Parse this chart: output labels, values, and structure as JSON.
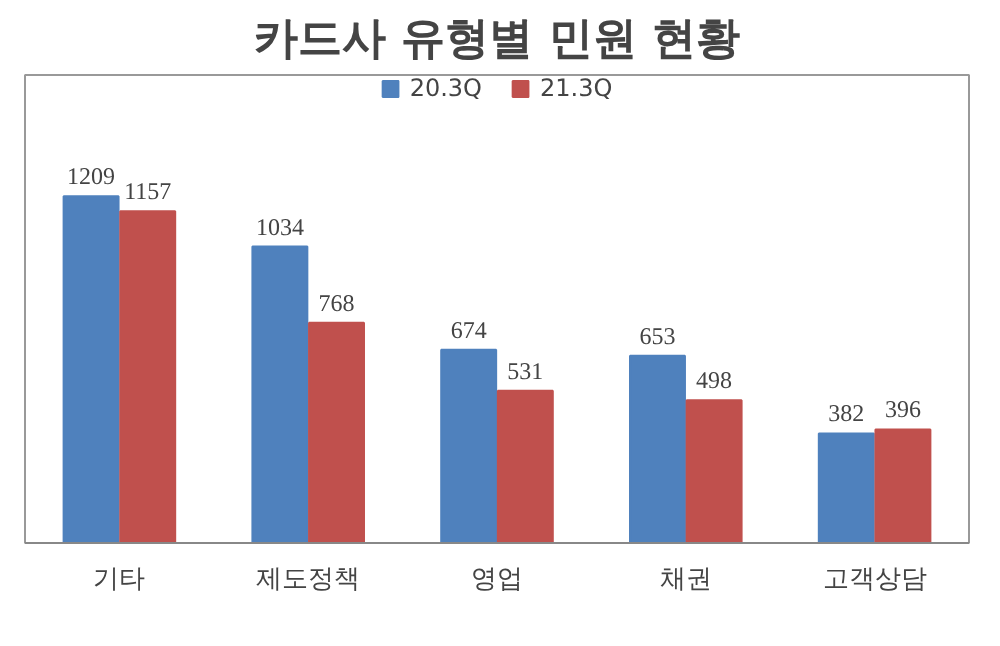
{
  "chart_data": {
    "type": "bar",
    "title": "카드사 유형별 민원 현황",
    "categories": [
      "기타",
      "제도정책",
      "영업",
      "채권",
      "고객상담"
    ],
    "series": [
      {
        "name": "20.3Q",
        "color": "#4f81bd",
        "values": [
          1209,
          1034,
          674,
          653,
          382
        ]
      },
      {
        "name": "21.3Q",
        "color": "#c0504d",
        "values": [
          1157,
          768,
          531,
          498,
          396
        ]
      }
    ],
    "data_labels": true,
    "legend": "top",
    "grid": false
  }
}
